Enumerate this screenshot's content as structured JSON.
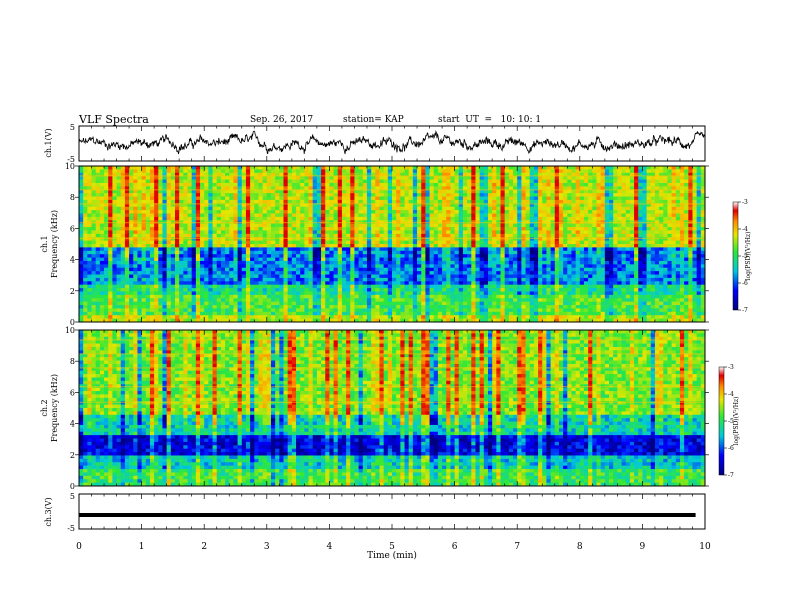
{
  "header": {
    "title": "VLF Spectra",
    "date": "Sep. 26, 2017",
    "station": "station= KAP",
    "start": "start  UT  =   10: 10: 1"
  },
  "chart_data": [
    {
      "type": "line",
      "panel": "ch1-waveform",
      "ylabel": "ch.1(V)",
      "ylim": [
        -5,
        5
      ],
      "yticks": [
        "5",
        "-5"
      ],
      "xlim": [
        0,
        10
      ],
      "description_values": "noisy waveform ranging roughly between -3 V and +4 V"
    },
    {
      "type": "heatmap",
      "panel": "ch1-spectrogram",
      "ylabel": "ch.1",
      "ylabel2": "Frequency (kHz)",
      "ylim": [
        0,
        10
      ],
      "yticks": [
        "0",
        "2",
        "4",
        "6",
        "8",
        "10"
      ],
      "xlim": [
        0,
        10
      ],
      "colorbar": {
        "label": "log(PSD)(V²/Hz)",
        "range": [
          -7,
          -3
        ],
        "ticks": [
          "-3",
          "-4",
          "-5",
          "-6",
          "-7"
        ]
      }
    },
    {
      "type": "heatmap",
      "panel": "ch2-spectrogram",
      "ylabel": "ch.2",
      "ylabel2": "Frequency (kHz)",
      "ylim": [
        0,
        10
      ],
      "yticks": [
        "0",
        "2",
        "4",
        "6",
        "8",
        "10"
      ],
      "xlim": [
        0,
        10
      ],
      "colorbar": {
        "label": "log(PSD)(V²/Hz)",
        "range": [
          -7,
          -3
        ],
        "ticks": [
          "-3",
          "-4",
          "-5",
          "-6",
          "-7"
        ]
      }
    },
    {
      "type": "line",
      "panel": "ch3-waveform",
      "ylabel": "ch.3(V)",
      "ylim": [
        -5,
        5
      ],
      "yticks": [
        "5",
        "-5"
      ],
      "xlim": [
        0,
        10
      ],
      "xlabel": "Time  (min)",
      "xticks": [
        "0",
        "1",
        "2",
        "3",
        "4",
        "5",
        "6",
        "7",
        "8",
        "9",
        "10"
      ],
      "series": [
        {
          "x": [
            0,
            9.85
          ],
          "y": [
            -1,
            -1
          ]
        }
      ]
    }
  ],
  "colors": {
    "dark_blue": "#00008b",
    "blue": "#0000ff",
    "cyan": "#00c8dc",
    "green": "#2ee838",
    "yellow": "#e6e600",
    "orange": "#ff8c00",
    "red": "#e00000"
  }
}
